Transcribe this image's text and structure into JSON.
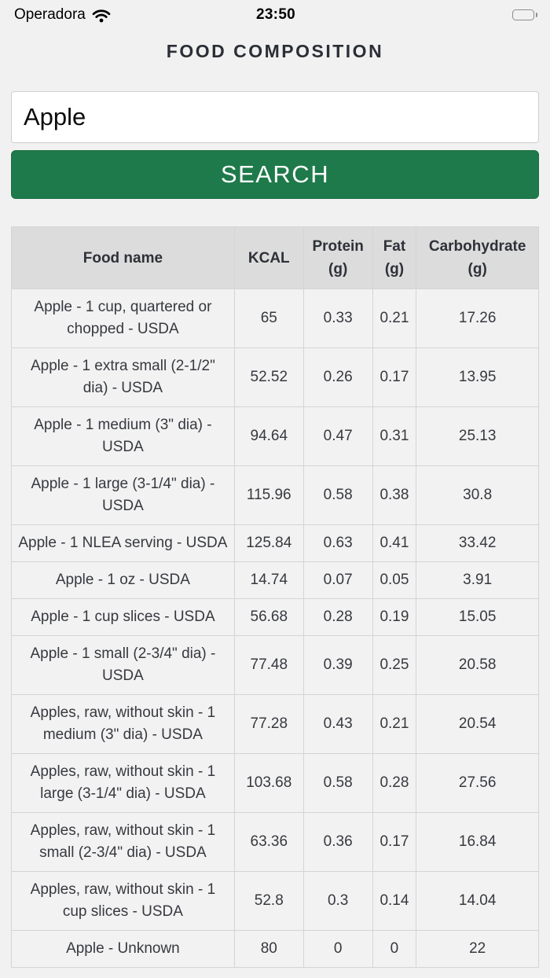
{
  "status_bar": {
    "carrier": "Operadora",
    "time": "23:50",
    "wifi_icon": "wifi",
    "battery_icon": "battery-full"
  },
  "header": {
    "title": "FOOD COMPOSITION"
  },
  "search": {
    "input_value": "Apple",
    "button_label": "SEARCH"
  },
  "table": {
    "columns": [
      "Food name",
      "KCAL",
      "Protein (g)",
      "Fat (g)",
      "Carbohydrate (g)"
    ],
    "rows": [
      {
        "food": "Apple - 1 cup, quartered or chopped - USDA",
        "kcal": "65",
        "protein": "0.33",
        "fat": "0.21",
        "carb": "17.26"
      },
      {
        "food": "Apple - 1 extra small (2-1/2\" dia) - USDA",
        "kcal": "52.52",
        "protein": "0.26",
        "fat": "0.17",
        "carb": "13.95"
      },
      {
        "food": "Apple - 1 medium (3\" dia) - USDA",
        "kcal": "94.64",
        "protein": "0.47",
        "fat": "0.31",
        "carb": "25.13"
      },
      {
        "food": "Apple - 1 large (3-1/4\" dia) - USDA",
        "kcal": "115.96",
        "protein": "0.58",
        "fat": "0.38",
        "carb": "30.8"
      },
      {
        "food": "Apple - 1 NLEA serving - USDA",
        "kcal": "125.84",
        "protein": "0.63",
        "fat": "0.41",
        "carb": "33.42"
      },
      {
        "food": "Apple - 1 oz - USDA",
        "kcal": "14.74",
        "protein": "0.07",
        "fat": "0.05",
        "carb": "3.91"
      },
      {
        "food": "Apple - 1 cup slices - USDA",
        "kcal": "56.68",
        "protein": "0.28",
        "fat": "0.19",
        "carb": "15.05"
      },
      {
        "food": "Apple - 1 small (2-3/4\" dia) - USDA",
        "kcal": "77.48",
        "protein": "0.39",
        "fat": "0.25",
        "carb": "20.58"
      },
      {
        "food": "Apples, raw, without skin - 1 medium (3\" dia) - USDA",
        "kcal": "77.28",
        "protein": "0.43",
        "fat": "0.21",
        "carb": "20.54"
      },
      {
        "food": "Apples, raw, without skin - 1 large (3-1/4\" dia) - USDA",
        "kcal": "103.68",
        "protein": "0.58",
        "fat": "0.28",
        "carb": "27.56"
      },
      {
        "food": "Apples, raw, without skin - 1 small (2-3/4\" dia) - USDA",
        "kcal": "63.36",
        "protein": "0.36",
        "fat": "0.17",
        "carb": "16.84"
      },
      {
        "food": "Apples, raw, without skin - 1 cup slices - USDA",
        "kcal": "52.8",
        "protein": "0.3",
        "fat": "0.14",
        "carb": "14.04"
      },
      {
        "food": "Apple - Unknown",
        "kcal": "80",
        "protein": "0",
        "fat": "0",
        "carb": "22"
      }
    ]
  },
  "colors": {
    "accent_green": "#1e7a4a",
    "page_bg": "#f1f1f1",
    "table_header_bg": "#dcdcdc",
    "table_border": "#d4d4d4"
  }
}
